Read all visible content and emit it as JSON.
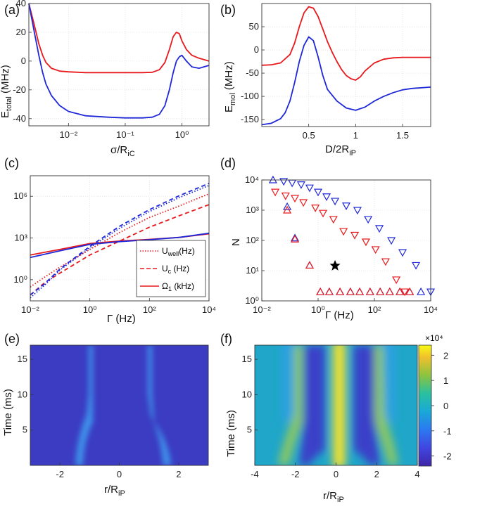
{
  "figure": {
    "colors": {
      "red": "#e8191c",
      "blue": "#1f28d8"
    },
    "colorbar": {
      "multiplier": "×10⁴",
      "ticks": [
        "2",
        "1",
        "0",
        "-1",
        "-2"
      ],
      "tick_values": [
        2,
        1,
        0,
        -1,
        -2
      ],
      "range": [
        -2.4,
        2.4
      ]
    }
  },
  "chart_data": [
    {
      "panel": "(a)",
      "type": "line",
      "xlabel": "σ/R_iC",
      "ylabel": "E_total (MHz)",
      "xscale": "log",
      "xlim": [
        0.002,
        3
      ],
      "ylim": [
        -45,
        40
      ],
      "xticks": [
        "10⁻²",
        "10⁻¹",
        "10⁰"
      ],
      "xtick_values": [
        0.01,
        0.1,
        1
      ],
      "yticks": [
        "40",
        "20",
        "0",
        "-20",
        "-40"
      ],
      "ytick_values": [
        40,
        20,
        0,
        -20,
        -40
      ],
      "series": [
        {
          "name": "red",
          "color": "#e8191c",
          "x": [
            0.002,
            0.0025,
            0.003,
            0.0035,
            0.004,
            0.005,
            0.007,
            0.01,
            0.02,
            0.05,
            0.1,
            0.2,
            0.3,
            0.4,
            0.5,
            0.6,
            0.7,
            0.8,
            0.9,
            1.0,
            1.2,
            1.5,
            2.0,
            3.0
          ],
          "y": [
            40,
            25,
            12,
            4,
            -1,
            -5,
            -7,
            -7.5,
            -8,
            -8,
            -8,
            -8,
            -7.8,
            -6,
            -1,
            8,
            17,
            20,
            19,
            14,
            8,
            4,
            2,
            0
          ]
        },
        {
          "name": "blue",
          "color": "#1f28d8",
          "x": [
            0.002,
            0.0025,
            0.003,
            0.0035,
            0.004,
            0.005,
            0.007,
            0.01,
            0.02,
            0.05,
            0.1,
            0.2,
            0.3,
            0.4,
            0.5,
            0.6,
            0.7,
            0.8,
            0.9,
            1.0,
            1.2,
            1.5,
            2.0,
            3.0
          ],
          "y": [
            40,
            20,
            4,
            -8,
            -16,
            -24,
            -31,
            -35,
            -38,
            -39,
            -39.5,
            -39.5,
            -39,
            -37,
            -31,
            -20,
            -8,
            0,
            3,
            4,
            0,
            -4,
            -5,
            -3
          ]
        }
      ]
    },
    {
      "panel": "(b)",
      "type": "line",
      "xlabel": "D/2R_iP",
      "ylabel": "E_mol (MHz)",
      "xlim": [
        0,
        1.8
      ],
      "ylim": [
        -165,
        100
      ],
      "xticks": [
        "0.5",
        "1",
        "1.5"
      ],
      "xtick_values": [
        0.5,
        1,
        1.5
      ],
      "yticks": [
        "50",
        "0",
        "-50",
        "-100",
        "-150"
      ],
      "ytick_values": [
        50,
        0,
        -50,
        -100,
        -150
      ],
      "series": [
        {
          "name": "red",
          "color": "#e8191c",
          "x": [
            0,
            0.1,
            0.2,
            0.3,
            0.35,
            0.4,
            0.45,
            0.5,
            0.55,
            0.6,
            0.65,
            0.7,
            0.75,
            0.8,
            0.85,
            0.9,
            0.95,
            1.0,
            1.05,
            1.1,
            1.2,
            1.3,
            1.4,
            1.5,
            1.6,
            1.8
          ],
          "y": [
            -33,
            -32,
            -28,
            -10,
            15,
            50,
            80,
            93,
            90,
            72,
            45,
            18,
            -5,
            -25,
            -42,
            -55,
            -62,
            -65,
            -58,
            -45,
            -28,
            -20,
            -17,
            -16,
            -16,
            -16
          ]
        },
        {
          "name": "blue",
          "color": "#1f28d8",
          "x": [
            0,
            0.1,
            0.2,
            0.25,
            0.3,
            0.35,
            0.4,
            0.45,
            0.5,
            0.55,
            0.6,
            0.65,
            0.7,
            0.8,
            0.9,
            1.0,
            1.1,
            1.2,
            1.3,
            1.4,
            1.5,
            1.6,
            1.8
          ],
          "y": [
            -161,
            -158,
            -148,
            -135,
            -110,
            -70,
            -25,
            10,
            28,
            20,
            -15,
            -55,
            -85,
            -110,
            -125,
            -130,
            -123,
            -110,
            -100,
            -92,
            -86,
            -83,
            -80
          ]
        }
      ]
    },
    {
      "panel": "(c)",
      "type": "line",
      "xlabel": "Γ (Hz)",
      "xscale": "log",
      "yscale": "log",
      "xlim": [
        0.01,
        10000
      ],
      "ylim": [
        0.03,
        30000000
      ],
      "xticks": [
        "10⁻²",
        "10⁰",
        "10²",
        "10⁴"
      ],
      "xtick_values": [
        0.01,
        1,
        100,
        10000
      ],
      "yticks": [
        "10⁶",
        "10³",
        "10⁰"
      ],
      "ytick_values": [
        1000000,
        1000,
        1
      ],
      "legend": [
        "U_well(Hz)",
        "U_c (Hz)",
        "Ω_1 (kHz)"
      ],
      "series": [
        {
          "name": "U_well red",
          "color": "#e8191c",
          "style": "dotted",
          "x": [
            0.01,
            0.03,
            0.1,
            1,
            10,
            100,
            1000,
            10000
          ],
          "y": [
            0.3,
            1.5,
            8,
            150,
            2500,
            30000,
            200000,
            1500000
          ]
        },
        {
          "name": "U_c red",
          "color": "#e8191c",
          "style": "dashed",
          "x": [
            0.01,
            0.03,
            0.1,
            1,
            10,
            100,
            1000,
            10000
          ],
          "y": [
            0.08,
            0.6,
            3,
            60,
            600,
            6000,
            40000,
            250000
          ]
        },
        {
          "name": "Ω_1 red",
          "color": "#e8191c",
          "style": "solid",
          "x": [
            0.01,
            0.1,
            1,
            10,
            100,
            1000,
            10000
          ],
          "y": [
            60,
            150,
            400,
            600,
            800,
            1100,
            2000
          ]
        },
        {
          "name": "U_well blue",
          "color": "#1f28d8",
          "style": "dotted",
          "x": [
            0.01,
            0.03,
            0.1,
            1,
            10,
            100,
            1000,
            10000
          ],
          "y": [
            0.05,
            0.4,
            5,
            200,
            5000,
            80000,
            800000,
            6000000
          ]
        },
        {
          "name": "U_c blue",
          "color": "#1f28d8",
          "style": "dashed",
          "x": [
            0.01,
            0.03,
            0.1,
            1,
            10,
            100,
            1000,
            10000
          ],
          "y": [
            0.08,
            0.5,
            6,
            250,
            7000,
            110000,
            1100000,
            8500000
          ]
        },
        {
          "name": "Ω_1 blue",
          "color": "#1f28d8",
          "style": "solid",
          "x": [
            0.01,
            0.1,
            1,
            10,
            100,
            1000,
            10000
          ],
          "y": [
            40,
            120,
            350,
            550,
            750,
            1100,
            2200
          ]
        }
      ]
    },
    {
      "panel": "(d)",
      "type": "scatter",
      "xlabel": "Γ (Hz)",
      "ylabel": "N",
      "xscale": "log",
      "yscale": "log",
      "xlim": [
        0.01,
        10000
      ],
      "ylim": [
        1,
        10000
      ],
      "xticks": [
        "10⁻²",
        "10⁰",
        "10²",
        "10⁴"
      ],
      "xtick_values": [
        0.01,
        1,
        100,
        10000
      ],
      "yticks": [
        "10⁴",
        "10³",
        "10²",
        "10¹",
        "10⁰"
      ],
      "ytick_values": [
        10000,
        1000,
        100,
        10,
        1
      ],
      "series": [
        {
          "name": "blue down",
          "color": "#1f28d8",
          "marker": "down",
          "x": [
            0.06,
            0.12,
            0.25,
            0.5,
            1,
            2,
            4,
            10,
            25,
            60,
            150,
            400,
            1000,
            3000,
            10000
          ],
          "y": [
            9000,
            8000,
            7000,
            5500,
            4000,
            2800,
            2000,
            1400,
            1000,
            500,
            250,
            100,
            40,
            15,
            2
          ]
        },
        {
          "name": "red down",
          "color": "#e8191c",
          "marker": "down",
          "x": [
            0.03,
            0.07,
            0.15,
            0.3,
            0.8,
            1.5,
            3.5,
            8,
            20,
            50,
            110,
            250,
            600,
            1200
          ],
          "y": [
            4000,
            3000,
            2500,
            1800,
            1200,
            800,
            500,
            200,
            150,
            90,
            50,
            20,
            5,
            2
          ]
        },
        {
          "name": "blue up",
          "color": "#1f28d8",
          "marker": "up",
          "x": [
            0.025,
            0.08,
            0.15,
            0.5,
            1.2,
            2.5,
            6,
            14,
            30,
            70,
            160,
            350,
            800,
            1800,
            4500
          ],
          "y": [
            10000,
            1300,
            120,
            15,
            2,
            2,
            2,
            2,
            2,
            2,
            2,
            2,
            2,
            2,
            2
          ]
        },
        {
          "name": "red up",
          "color": "#e8191c",
          "marker": "up",
          "x": [
            0.08,
            0.15,
            0.5,
            1.2,
            2.5,
            6,
            14,
            30,
            70,
            160,
            350,
            800,
            1800
          ],
          "y": [
            1000,
            110,
            15,
            2,
            2,
            2,
            2,
            2,
            2,
            2,
            2,
            2,
            2
          ]
        },
        {
          "name": "star",
          "color": "#000000",
          "marker": "star",
          "x": [
            4
          ],
          "y": [
            15
          ]
        }
      ]
    },
    {
      "panel": "(e)",
      "type": "heatmap",
      "xlabel": "r/R_iP",
      "ylabel": "Time (ms)",
      "xlim": [
        -3,
        3
      ],
      "ylim": [
        0,
        17
      ],
      "xticks": [
        "-2",
        "0",
        "2"
      ],
      "xtick_values": [
        -2,
        0,
        2
      ],
      "yticks": [
        "15",
        "10",
        "5"
      ],
      "ytick_values": [
        15,
        10,
        5
      ]
    },
    {
      "panel": "(f)",
      "type": "heatmap",
      "xlabel": "r/R_iP",
      "ylabel": "Time (ms)",
      "xlim": [
        -4,
        4
      ],
      "ylim": [
        0,
        17
      ],
      "xticks": [
        "-4",
        "-2",
        "0",
        "2",
        "4"
      ],
      "xtick_values": [
        -4,
        -2,
        0,
        2,
        4
      ],
      "yticks": [
        "15",
        "10",
        "5"
      ],
      "ytick_values": [
        15,
        10,
        5
      ]
    }
  ]
}
